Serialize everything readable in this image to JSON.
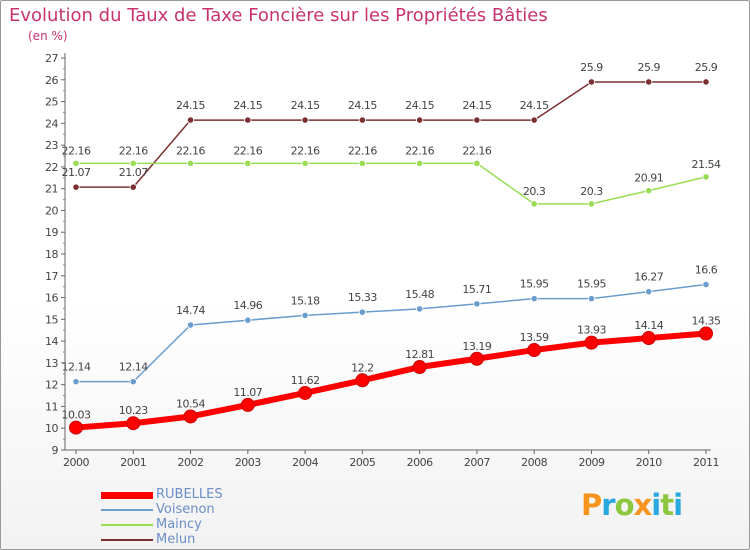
{
  "header": {
    "title": "Evolution du Taux de Taxe Foncière sur les Propriétés Bâties",
    "unit": "(en %)"
  },
  "brand": {
    "letters": [
      "P",
      "r",
      "o",
      "x",
      "i",
      "t",
      "i"
    ],
    "colors": [
      "#f7941d",
      "#29a8e0",
      "#8dc63f",
      "#f7941d",
      "#29a8e0",
      "#8dc63f",
      "#29a8e0"
    ]
  },
  "chart_data": {
    "type": "line",
    "title": "Evolution du Taux de Taxe Foncière sur les Propriétés Bâties",
    "ylabel": "(en %)",
    "xlabel": "",
    "x": [
      2000,
      2001,
      2002,
      2003,
      2004,
      2005,
      2006,
      2007,
      2008,
      2009,
      2010,
      2011
    ],
    "ylim": [
      9,
      27
    ],
    "yticks": [
      9,
      10,
      11,
      12,
      13,
      14,
      15,
      16,
      17,
      18,
      19,
      20,
      21,
      22,
      23,
      24,
      25,
      26,
      27
    ],
    "grid": false,
    "legend": "bottom-left",
    "series": [
      {
        "name": "RUBELLES",
        "color": "#ff0000",
        "labels": [
          "10.03",
          "10.23",
          "10.54",
          "11.07",
          "11.62",
          "12.2",
          "12.81",
          "13.19",
          "13.59",
          "13.93",
          "14.14",
          "14.35"
        ],
        "values": [
          10.03,
          10.23,
          10.54,
          11.07,
          11.62,
          12.2,
          12.81,
          13.19,
          13.59,
          13.93,
          14.14,
          14.35
        ]
      },
      {
        "name": "Voisenon",
        "color": "#6a9ccc",
        "labels": [
          "12.14",
          "12.14",
          "14.74",
          "14.96",
          "15.18",
          "15.33",
          "15.48",
          "15.71",
          "15.95",
          "15.95",
          "16.27",
          "16.6"
        ],
        "values": [
          12.14,
          12.14,
          14.74,
          14.96,
          15.18,
          15.33,
          15.48,
          15.71,
          15.95,
          15.95,
          16.27,
          16.6
        ]
      },
      {
        "name": "Maincy",
        "color": "#99dd55",
        "labels": [
          "22.16",
          "22.16",
          "22.16",
          "22.16",
          "22.16",
          "22.16",
          "22.16",
          "22.16",
          "20.3",
          "20.3",
          "20.91",
          "21.54"
        ],
        "values": [
          22.16,
          22.16,
          22.16,
          22.16,
          22.16,
          22.16,
          22.16,
          22.16,
          20.3,
          20.3,
          20.91,
          21.54
        ]
      },
      {
        "name": "Melun",
        "color": "#7a3030",
        "labels": [
          "21.07",
          "21.07",
          "24.15",
          "24.15",
          "24.15",
          "24.15",
          "24.15",
          "24.15",
          "24.15",
          "25.9",
          "25.9",
          "25.9"
        ],
        "values": [
          21.07,
          21.07,
          24.15,
          24.15,
          24.15,
          24.15,
          24.15,
          24.15,
          24.15,
          25.9,
          25.9,
          25.9
        ]
      }
    ]
  }
}
